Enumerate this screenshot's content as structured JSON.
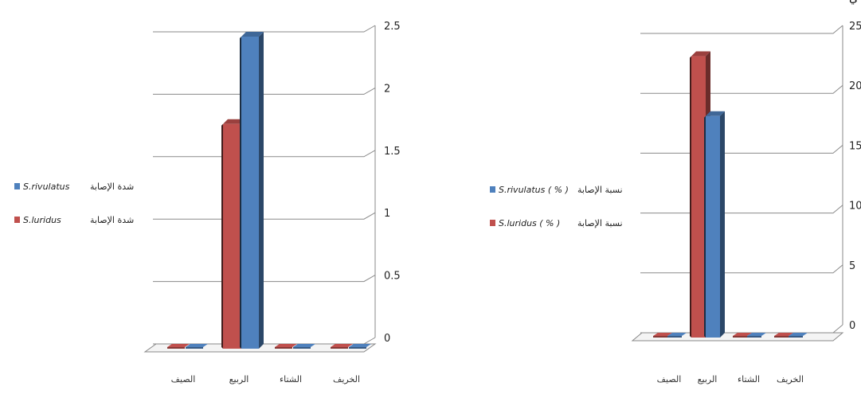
{
  "corner_mark": "ي",
  "colors": {
    "red": "#c0504d",
    "blue": "#4f81bd"
  },
  "chart_data": [
    {
      "type": "bar",
      "categories": [
        "الصيف",
        "الربيع",
        "الشتاء",
        "الخريف"
      ],
      "series": [
        {
          "name": "S.luridus",
          "legend_prefix": "شدة الإصابة",
          "color": "#c0504d",
          "values": [
            0,
            1.8,
            0,
            0
          ]
        },
        {
          "name": "S.rivulatus",
          "legend_prefix": "شدة الإصابة",
          "color": "#4f81bd",
          "values": [
            0,
            2.5,
            0,
            0
          ]
        }
      ],
      "ylim": [
        0,
        2.5
      ],
      "yticks": [
        "0",
        "0.5",
        "1",
        "1.5",
        "2",
        "2.5"
      ],
      "grid": true,
      "legend_position": "left"
    },
    {
      "type": "bar",
      "categories": [
        "الصيف",
        "الربيع",
        "الشتاء",
        "الخريف"
      ],
      "series": [
        {
          "name": "S.luridus ( % )",
          "legend_prefix": "نسبة الإصابة",
          "color": "#c0504d",
          "values": [
            0,
            23.5,
            0,
            0
          ]
        },
        {
          "name": "S.rivulatus ( % )",
          "legend_prefix": "نسبة الإصابة",
          "color": "#4f81bd",
          "values": [
            0,
            18.5,
            0,
            0
          ]
        }
      ],
      "ylim": [
        0,
        25
      ],
      "yticks": [
        "0",
        "5",
        "10",
        "15",
        "20",
        "25"
      ],
      "grid": true,
      "legend_position": "left"
    }
  ]
}
